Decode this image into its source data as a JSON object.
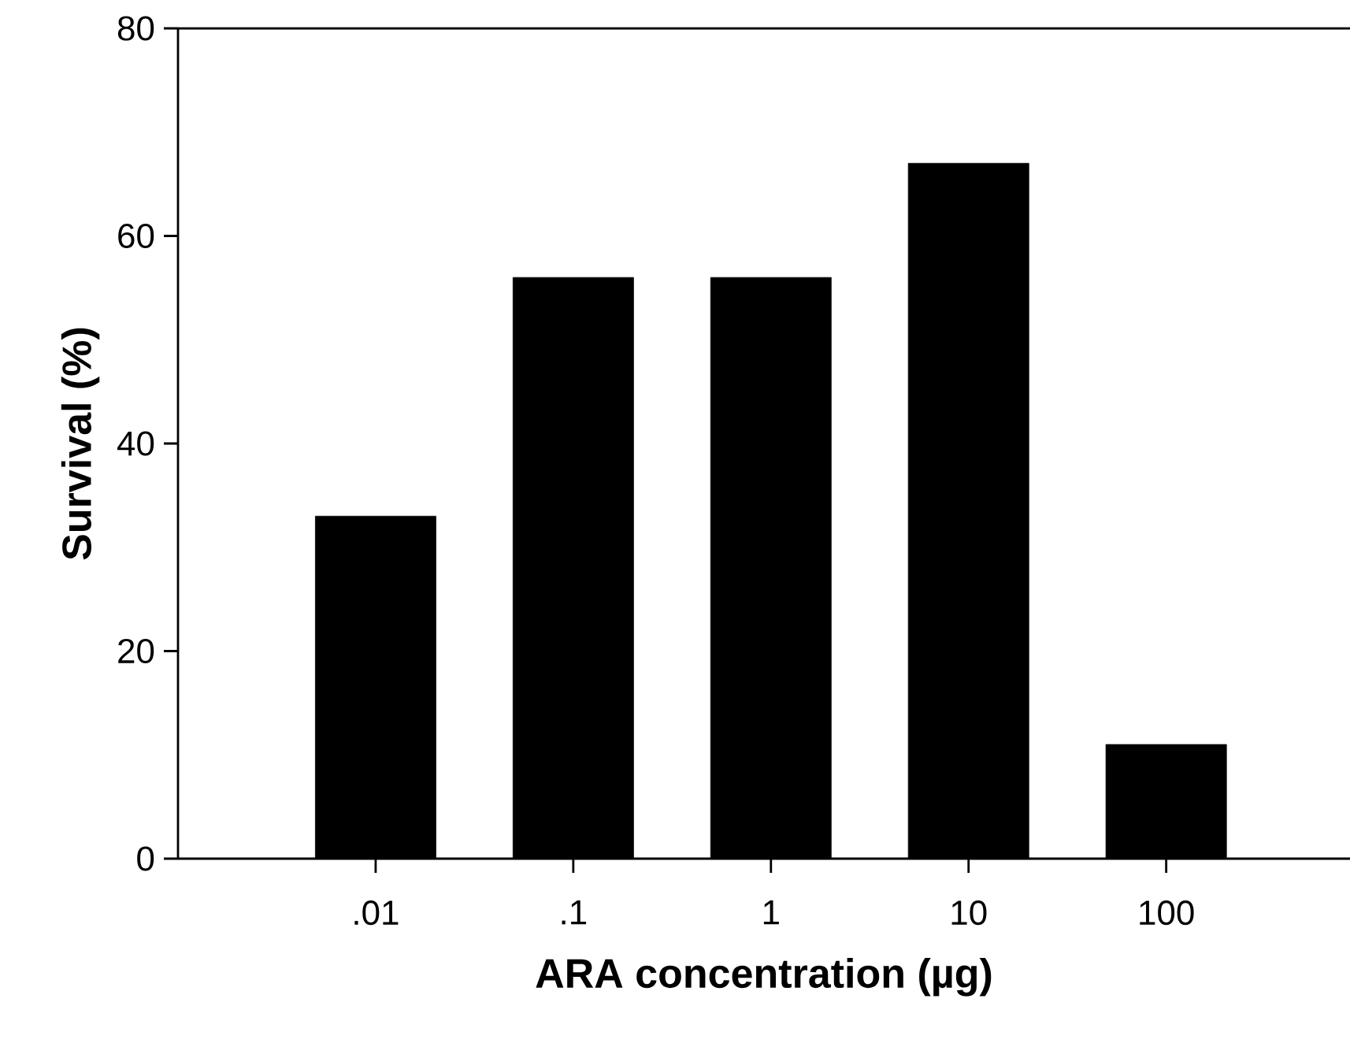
{
  "chart_data": {
    "type": "bar",
    "xlabel": "ARA concentration (µg)",
    "ylabel": "Survival (%)",
    "categories": [
      ".01",
      ".1",
      "1",
      "10",
      "100"
    ],
    "values": [
      33,
      56,
      56,
      67,
      11
    ],
    "color": "#000000",
    "ylim": [
      0,
      80
    ],
    "yticks": [
      0,
      20,
      40,
      60,
      80
    ],
    "grid": false
  }
}
